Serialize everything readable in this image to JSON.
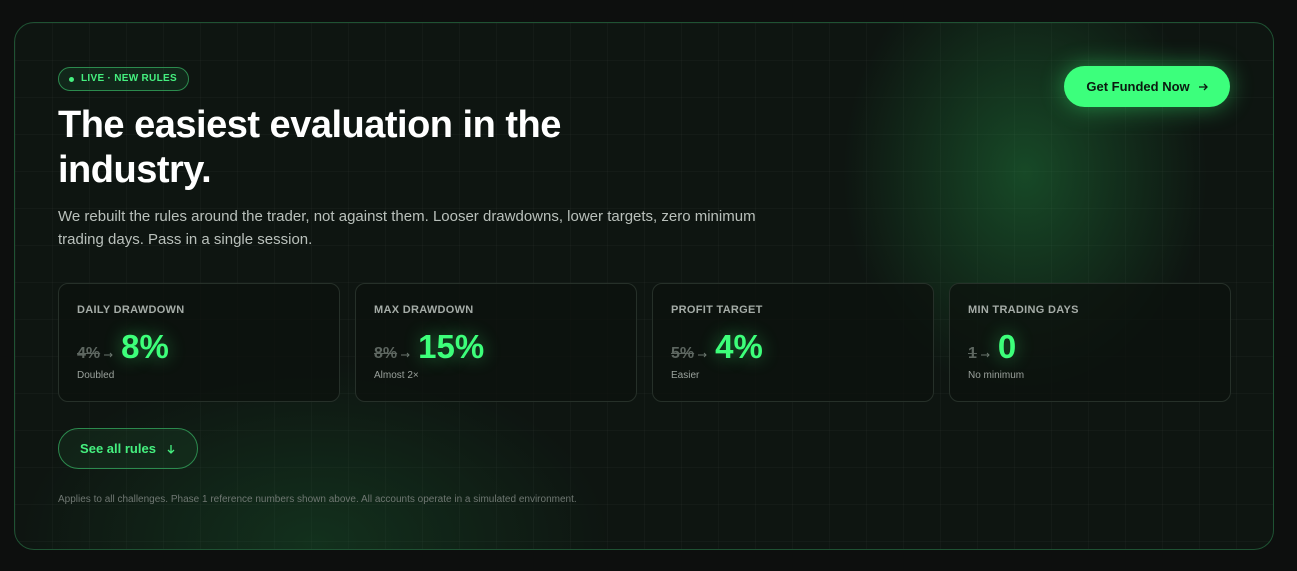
{
  "badge": "LIVE · NEW RULES",
  "title": "The easiest evaluation in the industry.",
  "subtitle": "We rebuilt the rules around the trader, not against them. Looser drawdowns, lower targets, zero minimum trading days. Pass in a single session.",
  "cta": "Get Funded Now",
  "stats": [
    {
      "label": "DAILY DRAWDOWN",
      "old": "4%",
      "new": "8%",
      "note": "Doubled"
    },
    {
      "label": "MAX DRAWDOWN",
      "old": "8%",
      "new": "15%",
      "note": "Almost 2×"
    },
    {
      "label": "PROFIT TARGET",
      "old": "5%",
      "new": "4%",
      "note": "Easier"
    },
    {
      "label": "MIN TRADING DAYS",
      "old": "1",
      "new": "0",
      "note": "No minimum"
    }
  ],
  "secondary_button": "See all rules",
  "footnote": "Applies to all challenges. Phase 1 reference numbers shown above. All accounts operate in a simulated environment."
}
